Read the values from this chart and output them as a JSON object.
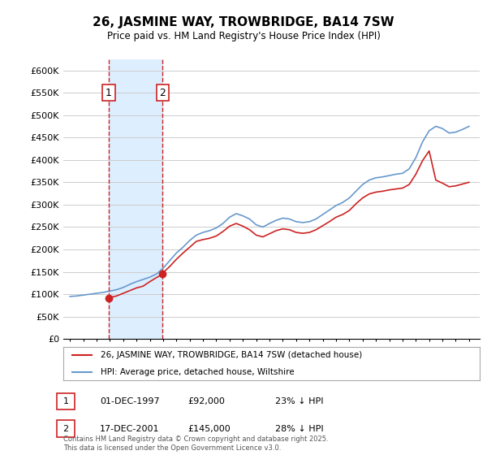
{
  "title": "26, JASMINE WAY, TROWBRIDGE, BA14 7SW",
  "subtitle": "Price paid vs. HM Land Registry's House Price Index (HPI)",
  "ylabel_ticks": [
    "£0",
    "£50K",
    "£100K",
    "£150K",
    "£200K",
    "£250K",
    "£300K",
    "£350K",
    "£400K",
    "£450K",
    "£500K",
    "£550K",
    "£600K"
  ],
  "ytick_values": [
    0,
    50000,
    100000,
    150000,
    200000,
    250000,
    300000,
    350000,
    400000,
    450000,
    500000,
    550000,
    600000
  ],
  "ylim": [
    0,
    625000
  ],
  "xlim_start": 1994.5,
  "xlim_end": 2025.8,
  "hpi_color": "#6699cc",
  "price_color": "#cc2222",
  "purchase1_x": 1997.92,
  "purchase1_y": 92000,
  "purchase1_label": "1",
  "purchase1_date": "01-DEC-1997",
  "purchase1_price": "£92,000",
  "purchase1_note": "23% ↓ HPI",
  "purchase2_x": 2001.96,
  "purchase2_y": 145000,
  "purchase2_label": "2",
  "purchase2_date": "17-DEC-2001",
  "purchase2_price": "£145,000",
  "purchase2_note": "28% ↓ HPI",
  "legend_line1": "26, JASMINE WAY, TROWBRIDGE, BA14 7SW (detached house)",
  "legend_line2": "HPI: Average price, detached house, Wiltshire",
  "footer": "Contains HM Land Registry data © Crown copyright and database right 2025.\nThis data is licensed under the Open Government Licence v3.0.",
  "background_color": "#ffffff",
  "shaded_region_color": "#ddeeff"
}
